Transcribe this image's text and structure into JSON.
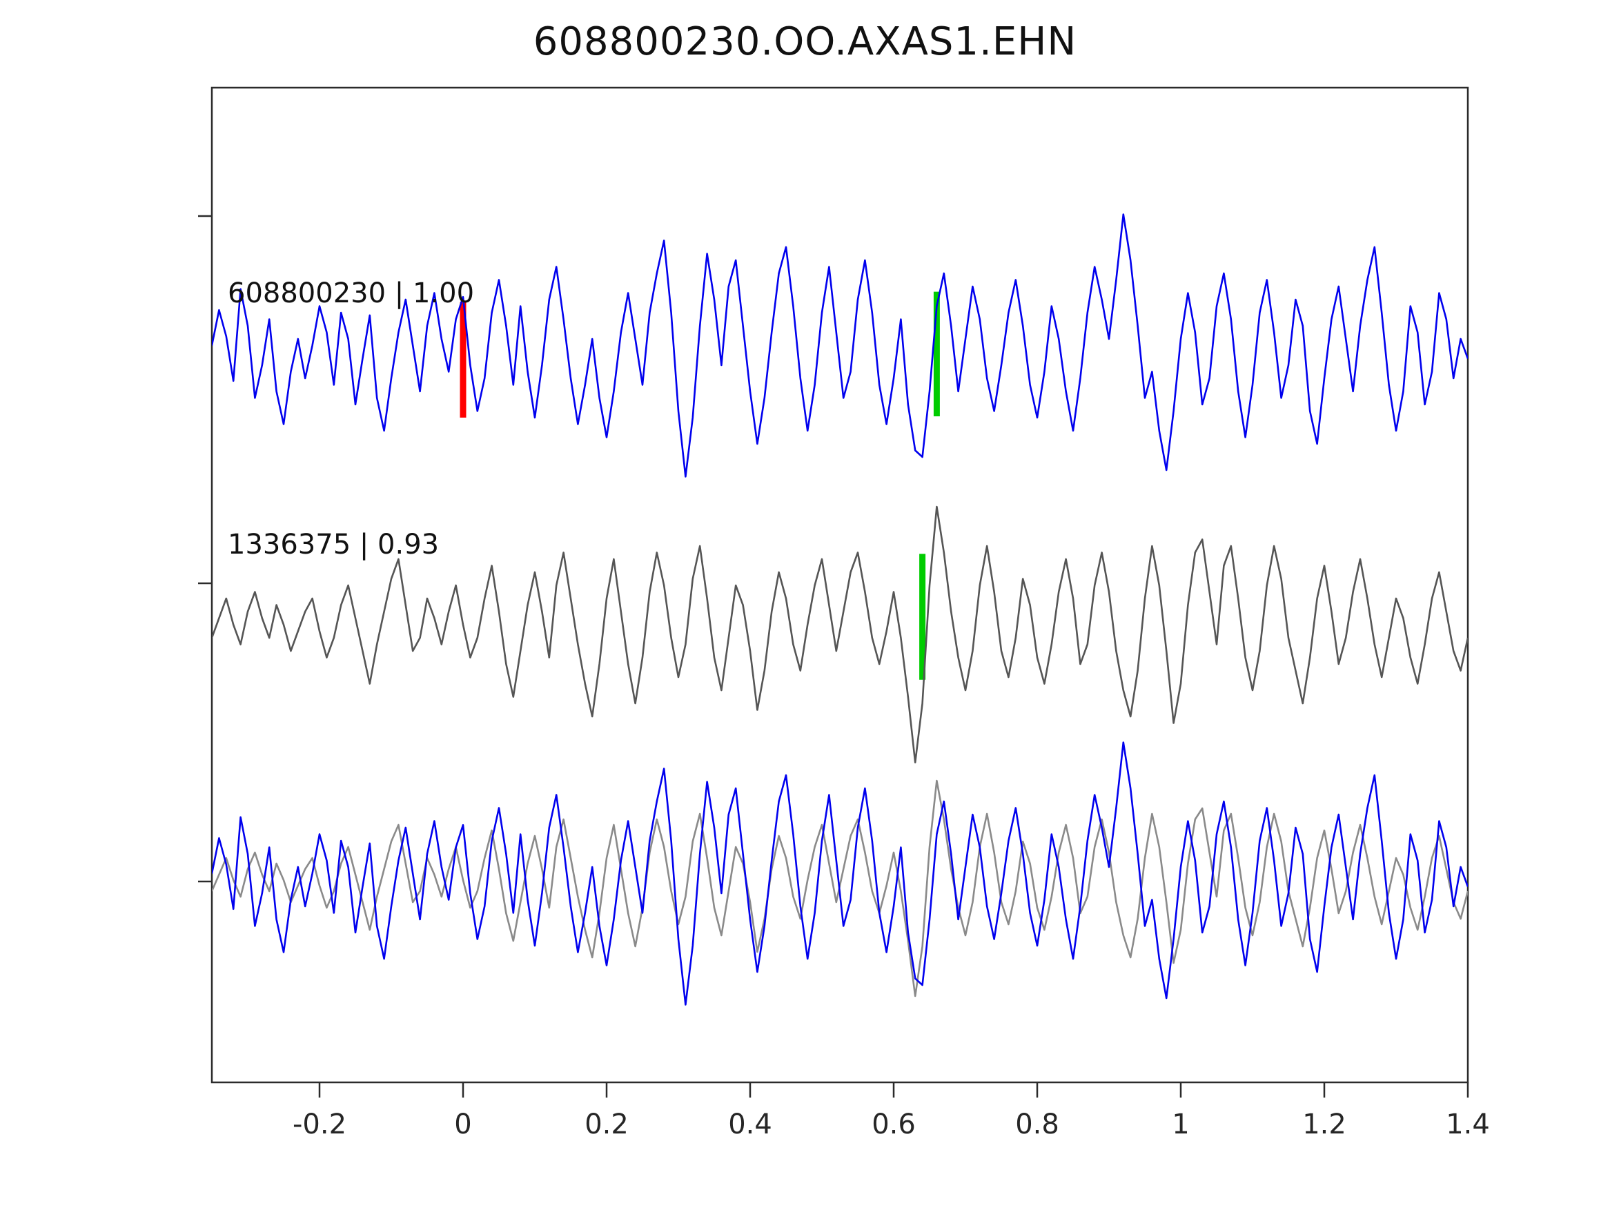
{
  "title": "608800230.OO.AXAS1.EHN",
  "chart_data": {
    "type": "line",
    "title": "608800230.OO.AXAS1.EHN",
    "xlabel": "",
    "ylabel": "",
    "grid": false,
    "legend_position": "none",
    "xlim": [
      -0.35,
      1.4
    ],
    "x_start": -0.35,
    "x_step": 0.01,
    "n_points": 176,
    "x_ticks": [
      -0.2,
      0,
      0.2,
      0.4,
      0.6,
      0.8,
      1,
      1.2,
      1.4
    ],
    "x_tick_labels": [
      "-0.2",
      "0",
      "0.2",
      "0.4",
      "0.6",
      "0.8",
      "1",
      "1.2",
      "1.4"
    ],
    "overlay_color": "#8a8a8a",
    "axis_color": "#2b2b2b",
    "series": [
      {
        "name": "608800230",
        "label": "608800230 | 1.00",
        "correlation": "1.00",
        "color": "#0000ee",
        "values": [
          0.05,
          0.32,
          0.12,
          -0.22,
          0.48,
          0.2,
          -0.35,
          -0.1,
          0.25,
          -0.3,
          -0.55,
          -0.15,
          0.1,
          -0.2,
          0.05,
          0.35,
          0.15,
          -0.25,
          0.3,
          0.1,
          -0.4,
          -0.05,
          0.28,
          -0.35,
          -0.6,
          -0.2,
          0.15,
          0.4,
          0.05,
          -0.3,
          0.2,
          0.45,
          0.1,
          -0.15,
          0.25,
          0.42,
          -0.1,
          -0.45,
          -0.2,
          0.3,
          0.55,
          0.2,
          -0.25,
          0.35,
          -0.15,
          -0.5,
          -0.1,
          0.4,
          0.65,
          0.25,
          -0.2,
          -0.55,
          -0.25,
          0.1,
          -0.35,
          -0.65,
          -0.3,
          0.15,
          0.45,
          0.1,
          -0.25,
          0.3,
          0.6,
          0.85,
          0.3,
          -0.45,
          -0.95,
          -0.5,
          0.2,
          0.75,
          0.4,
          -0.1,
          0.5,
          0.7,
          0.2,
          -0.3,
          -0.7,
          -0.35,
          0.15,
          0.6,
          0.8,
          0.35,
          -0.2,
          -0.6,
          -0.25,
          0.3,
          0.65,
          0.15,
          -0.35,
          -0.15,
          0.4,
          0.7,
          0.3,
          -0.25,
          -0.55,
          -0.2,
          0.25,
          -0.4,
          -0.75,
          -0.8,
          -0.3,
          0.35,
          0.6,
          0.2,
          -0.3,
          0.1,
          0.5,
          0.25,
          -0.2,
          -0.45,
          -0.1,
          0.3,
          0.55,
          0.2,
          -0.25,
          -0.5,
          -0.15,
          0.35,
          0.1,
          -0.3,
          -0.6,
          -0.2,
          0.3,
          0.65,
          0.4,
          0.1,
          0.55,
          1.05,
          0.7,
          0.2,
          -0.35,
          -0.15,
          -0.6,
          -0.9,
          -0.45,
          0.1,
          0.45,
          0.15,
          -0.4,
          -0.2,
          0.35,
          0.6,
          0.25,
          -0.3,
          -0.65,
          -0.25,
          0.3,
          0.55,
          0.15,
          -0.35,
          -0.1,
          0.4,
          0.2,
          -0.45,
          -0.7,
          -0.2,
          0.25,
          0.5,
          0.1,
          -0.3,
          0.2,
          0.55,
          0.8,
          0.3,
          -0.25,
          -0.6,
          -0.3,
          0.35,
          0.15,
          -0.4,
          -0.15,
          0.45,
          0.25,
          -0.2,
          0.1,
          -0.05
        ]
      },
      {
        "name": "1336375",
        "label": "1336375 | 0.93",
        "correlation": "0.93",
        "color": "#555555",
        "values": [
          -0.1,
          0.05,
          0.2,
          0.0,
          -0.15,
          0.1,
          0.25,
          0.05,
          -0.1,
          0.15,
          0.0,
          -0.2,
          -0.05,
          0.1,
          0.2,
          -0.05,
          -0.25,
          -0.1,
          0.15,
          0.3,
          0.05,
          -0.2,
          -0.45,
          -0.15,
          0.1,
          0.35,
          0.5,
          0.15,
          -0.2,
          -0.1,
          0.2,
          0.05,
          -0.15,
          0.1,
          0.3,
          0.0,
          -0.25,
          -0.1,
          0.2,
          0.45,
          0.1,
          -0.3,
          -0.55,
          -0.2,
          0.15,
          0.4,
          0.1,
          -0.25,
          0.3,
          0.55,
          0.2,
          -0.15,
          -0.45,
          -0.7,
          -0.3,
          0.2,
          0.5,
          0.1,
          -0.3,
          -0.6,
          -0.25,
          0.25,
          0.55,
          0.3,
          -0.1,
          -0.4,
          -0.15,
          0.35,
          0.6,
          0.2,
          -0.25,
          -0.5,
          -0.1,
          0.3,
          0.15,
          -0.2,
          -0.65,
          -0.35,
          0.1,
          0.4,
          0.2,
          -0.15,
          -0.35,
          0.0,
          0.3,
          0.5,
          0.15,
          -0.2,
          0.1,
          0.4,
          0.55,
          0.25,
          -0.1,
          -0.3,
          -0.05,
          0.25,
          -0.1,
          -0.55,
          -1.05,
          -0.6,
          0.3,
          0.9,
          0.55,
          0.1,
          -0.25,
          -0.5,
          -0.2,
          0.3,
          0.6,
          0.25,
          -0.2,
          -0.4,
          -0.1,
          0.35,
          0.15,
          -0.25,
          -0.45,
          -0.15,
          0.25,
          0.5,
          0.2,
          -0.3,
          -0.15,
          0.3,
          0.55,
          0.25,
          -0.2,
          -0.5,
          -0.7,
          -0.35,
          0.2,
          0.6,
          0.3,
          -0.2,
          -0.75,
          -0.45,
          0.15,
          0.55,
          0.65,
          0.25,
          -0.15,
          0.45,
          0.6,
          0.2,
          -0.25,
          -0.5,
          -0.2,
          0.3,
          0.6,
          0.35,
          -0.1,
          -0.35,
          -0.6,
          -0.25,
          0.2,
          0.45,
          0.1,
          -0.3,
          -0.1,
          0.25,
          0.5,
          0.2,
          -0.15,
          -0.4,
          -0.1,
          0.2,
          0.05,
          -0.25,
          -0.45,
          -0.15,
          0.2,
          0.4,
          0.1,
          -0.2,
          -0.35,
          -0.1
        ]
      }
    ],
    "markers": [
      {
        "series": "608800230",
        "x": 0.0,
        "color": "#ff0000",
        "extent_above": 0.38,
        "extent_below": 0.5
      },
      {
        "series": "608800230",
        "x": 0.66,
        "color": "#00cc00",
        "extent_above": 0.46,
        "extent_below": 0.49
      },
      {
        "series": "1336375",
        "x": 0.64,
        "color": "#00cc00",
        "extent_above": 0.54,
        "extent_below": 0.42
      }
    ],
    "annotations": [
      "608800230 | 1.00",
      "1336375 | 0.93"
    ]
  }
}
